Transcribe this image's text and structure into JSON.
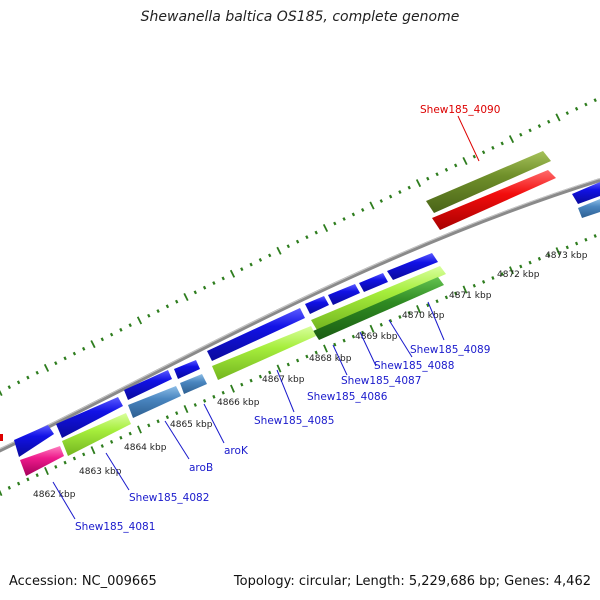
{
  "title": "Shewanella baltica OS185, complete genome",
  "footer": {
    "accession": "Accession: NC_009665",
    "summary": "Topology: circular; Length: 5,229,686 bp; Genes: 4,462"
  },
  "colors": {
    "backbone": "#8a8a8a",
    "tick": "#2e7d1e",
    "blue_cds": "#1212e6",
    "steelblue_cds": "#4a86c0",
    "lime_cds": "#a6ee3c",
    "darkgreen_cds": "#2f8a22",
    "olive_cds": "#6f8f2a",
    "red_cds": "#f20d0d",
    "pink_cds": "#ee1b8c",
    "label_blue": "#1a1acc",
    "label_red": "#dd0000"
  },
  "scale_ticks": [
    {
      "label": "4862 kbp"
    },
    {
      "label": "4863 kbp"
    },
    {
      "label": "4864 kbp"
    },
    {
      "label": "4865 kbp"
    },
    {
      "label": "4866 kbp"
    },
    {
      "label": "4867 kbp"
    },
    {
      "label": "4868 kbp"
    },
    {
      "label": "4869 kbp"
    },
    {
      "label": "4870 kbp"
    },
    {
      "label": "4871 kbp"
    },
    {
      "label": "4872 kbp"
    },
    {
      "label": "4873 kbp"
    }
  ],
  "gene_labels": [
    {
      "text": "Shew185_4090"
    },
    {
      "text": "Shew185_4089"
    },
    {
      "text": "Shew185_4088"
    },
    {
      "text": "Shew185_4087"
    },
    {
      "text": "Shew185_4086"
    },
    {
      "text": "Shew185_4085"
    },
    {
      "text": "aroK"
    },
    {
      "text": "aroB"
    },
    {
      "text": "Shew185_4082"
    },
    {
      "text": "Shew185_4081"
    }
  ]
}
